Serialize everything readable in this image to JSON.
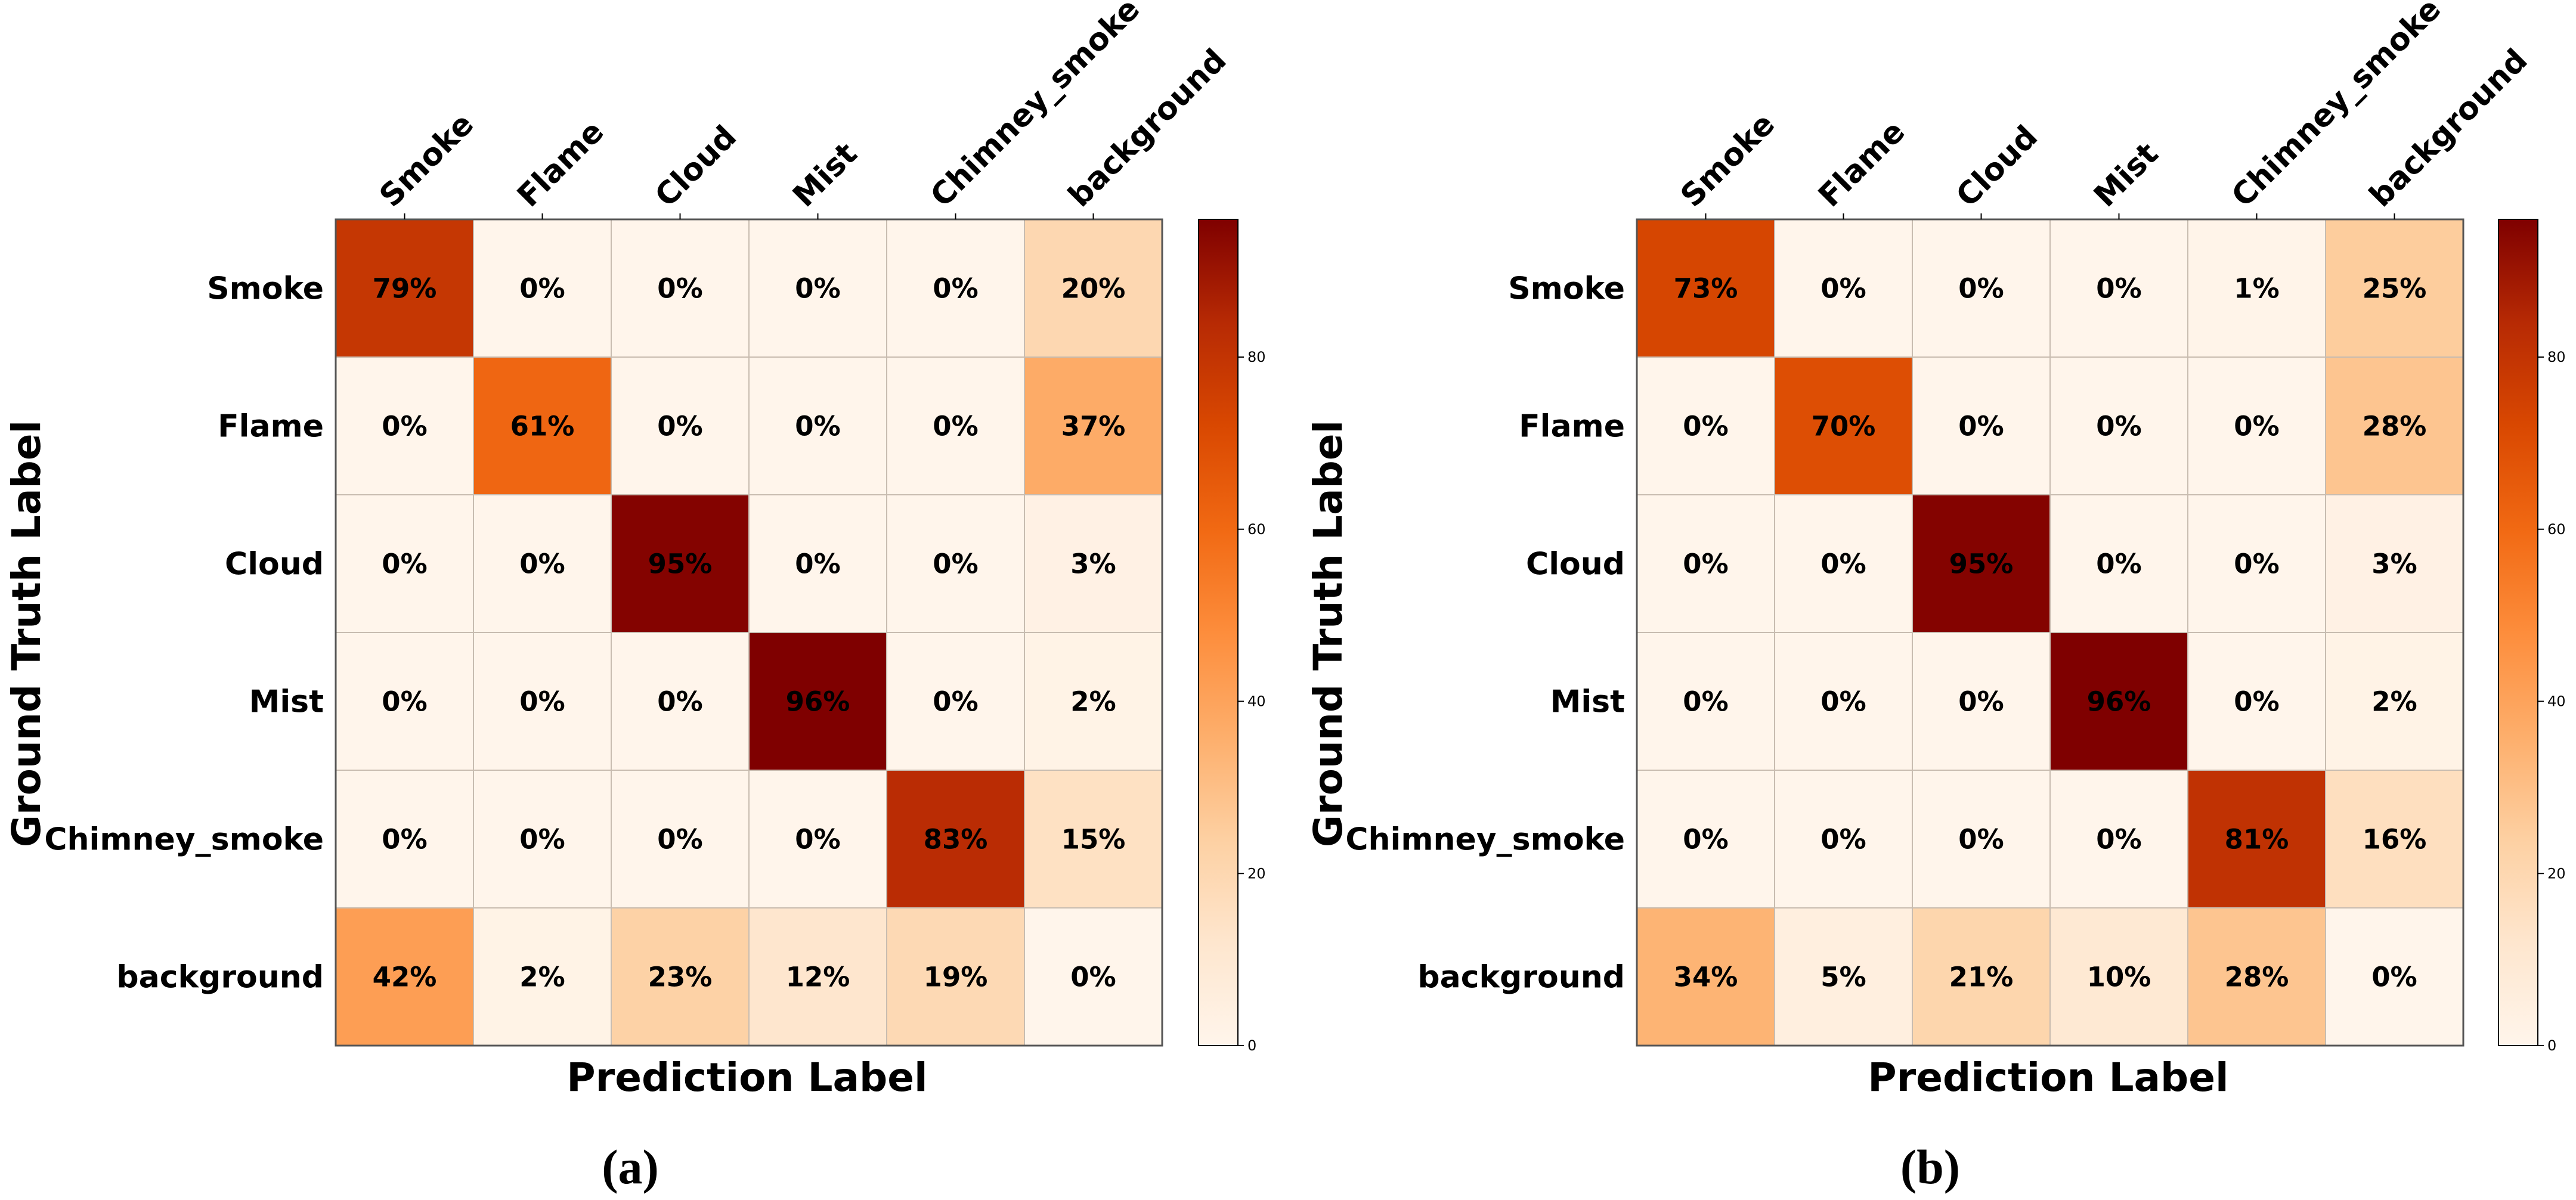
{
  "chart_data": [
    {
      "type": "heatmap",
      "panel_label": "(a)",
      "xlabel": "Prediction Label",
      "ylabel": "Ground Truth Label",
      "x_categories": [
        "Smoke",
        "Flame",
        "Cloud",
        "Mist",
        "Chimney_smoke",
        "background"
      ],
      "y_categories": [
        "Smoke",
        "Flame",
        "Cloud",
        "Mist",
        "Chimney_smoke",
        "background"
      ],
      "values": [
        [
          79,
          0,
          0,
          0,
          0,
          20
        ],
        [
          0,
          61,
          0,
          0,
          0,
          37
        ],
        [
          0,
          0,
          95,
          0,
          0,
          3
        ],
        [
          0,
          0,
          0,
          96,
          0,
          2
        ],
        [
          0,
          0,
          0,
          0,
          83,
          15
        ],
        [
          42,
          2,
          23,
          12,
          19,
          0
        ]
      ],
      "value_format": "percent",
      "colormap": "Reds",
      "colorbar": {
        "range": [
          0,
          96
        ],
        "ticks": [
          0,
          20,
          40,
          60,
          80
        ]
      }
    },
    {
      "type": "heatmap",
      "panel_label": "(b)",
      "xlabel": "Prediction Label",
      "ylabel": "Ground Truth Label",
      "x_categories": [
        "Smoke",
        "Flame",
        "Cloud",
        "Mist",
        "Chimney_smoke",
        "background"
      ],
      "y_categories": [
        "Smoke",
        "Flame",
        "Cloud",
        "Mist",
        "Chimney_smoke",
        "background"
      ],
      "values": [
        [
          73,
          0,
          0,
          0,
          1,
          25
        ],
        [
          0,
          70,
          0,
          0,
          0,
          28
        ],
        [
          0,
          0,
          95,
          0,
          0,
          3
        ],
        [
          0,
          0,
          0,
          96,
          0,
          2
        ],
        [
          0,
          0,
          0,
          0,
          81,
          16
        ],
        [
          34,
          5,
          21,
          10,
          28,
          0
        ]
      ],
      "value_format": "percent",
      "colormap": "Reds",
      "colorbar": {
        "range": [
          0,
          96
        ],
        "ticks": [
          0,
          20,
          40,
          60,
          80
        ]
      }
    }
  ]
}
